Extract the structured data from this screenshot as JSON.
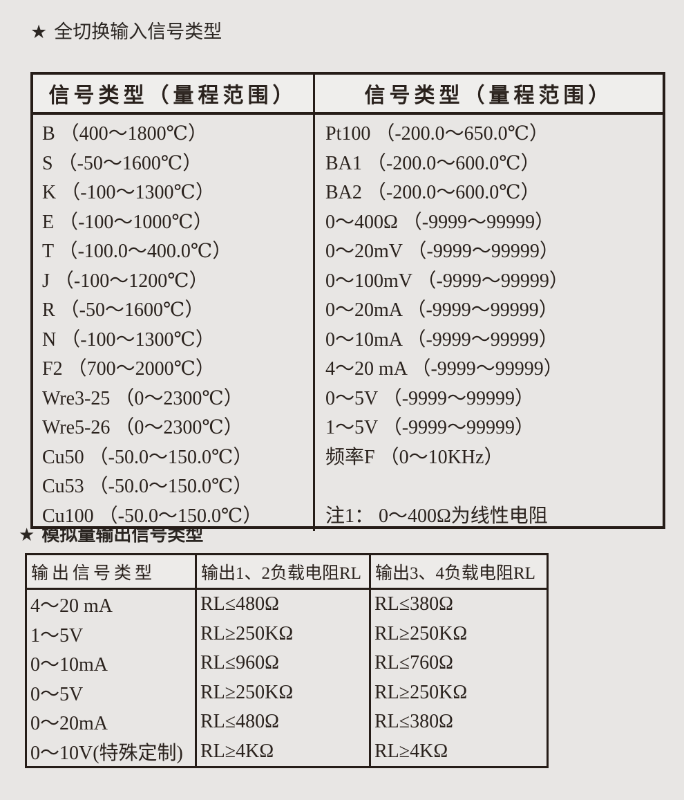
{
  "page": {
    "background_color": "#e8e6e4",
    "border_color": "#261d18",
    "text_color": "#2a221d",
    "star_icon": "★"
  },
  "section1": {
    "title": "全切换输入信号类型",
    "table": {
      "header_left": "信号类型（量程范围）",
      "header_right": "信号类型（量程范围）",
      "left_rows": [
        "B （400～1800℃）",
        "S （-50～1600℃）",
        "K （-100～1300℃）",
        "E （-100～1000℃）",
        "T （-100.0～400.0℃）",
        "J （-100～1200℃）",
        "R （-50～1600℃）",
        "N （-100～1300℃）",
        "F2 （700～2000℃）",
        "Wre3-25 （0～2300℃）",
        "Wre5-26 （0～2300℃）",
        "Cu50 （-50.0～150.0℃）",
        "Cu53 （-50.0～150.0℃）",
        "Cu100 （-50.0～150.0℃）"
      ],
      "right_rows": [
        "Pt100 （-200.0～650.0℃）",
        "BA1 （-200.0～600.0℃）",
        "BA2 （-200.0～600.0℃）",
        "0～400Ω （-9999～99999）",
        "0～20mV （-9999～99999）",
        "0～100mV （-9999～99999）",
        "0～20mA （-9999～99999）",
        "0～10mA （-9999～99999）",
        "4～20 mA （-9999～99999）",
        "0～5V （-9999～99999）",
        "1～5V （-9999～99999）",
        "频率F （0～10KHz）"
      ],
      "note": "注1： 0～400Ω为线性电阻"
    }
  },
  "section2": {
    "title": "模拟量输出信号类型",
    "table": {
      "headers": [
        "输出信号类型",
        "输出1、2负载电阻RL",
        "输出3、4负载电阻RL"
      ],
      "rows": [
        [
          "4～20 mA",
          "RL≤480Ω",
          "RL≤380Ω"
        ],
        [
          "1～5V",
          "RL≥250KΩ",
          "RL≥250KΩ"
        ],
        [
          "0～10mA",
          "RL≤960Ω",
          "RL≤760Ω"
        ],
        [
          "0～5V",
          "RL≥250KΩ",
          "RL≥250KΩ"
        ],
        [
          "0～20mA",
          "RL≤480Ω",
          "RL≤380Ω"
        ],
        [
          "0～10V(特殊定制)",
          "RL≥4KΩ",
          "RL≥4KΩ"
        ]
      ]
    }
  }
}
